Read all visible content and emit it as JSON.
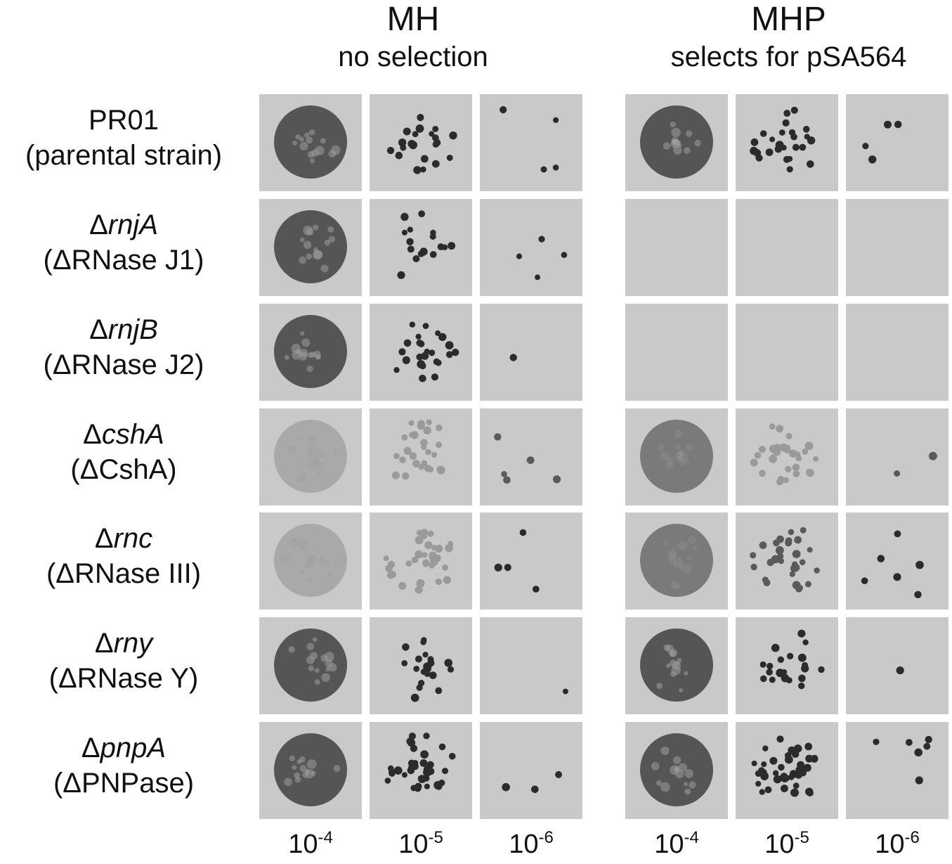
{
  "panels": [
    {
      "id": "mh",
      "title": "MH",
      "subtitle": "no selection"
    },
    {
      "id": "mhp",
      "title": "MHP",
      "subtitle": "selects for pSA564"
    }
  ],
  "strains": [
    {
      "strain": "PR01",
      "desc": "(parental strain)",
      "delta": false
    },
    {
      "strain": "rnjA",
      "desc": "(ΔRNase J1)",
      "delta": true
    },
    {
      "strain": "rnjB",
      "desc": "(ΔRNase J2)",
      "delta": true
    },
    {
      "strain": "cshA",
      "desc": "(ΔCshA)",
      "delta": true
    },
    {
      "strain": "rnc",
      "desc": "(ΔRNase III)",
      "delta": true
    },
    {
      "strain": "rny",
      "desc": "(ΔRNase Y)",
      "delta": true
    },
    {
      "strain": "pnpA",
      "desc": "(ΔPNPase)",
      "delta": true
    }
  ],
  "delta_symbol": "Δ",
  "dilutions": [
    {
      "base": "10",
      "exp": "-4"
    },
    {
      "base": "10",
      "exp": "-5"
    },
    {
      "base": "10",
      "exp": "-6"
    },
    {
      "base": "10",
      "exp": "-4"
    },
    {
      "base": "10",
      "exp": "-5"
    },
    {
      "base": "10",
      "exp": "-6"
    }
  ],
  "colors": {
    "plate_bg": "#c9c9c9",
    "growth_dark": "#555555",
    "growth_light": "#a9a9a9",
    "colony_dark": "#2b2b2b",
    "colony_light": "#9a9a9a"
  },
  "growth": [
    [
      "dark",
      "dark",
      "dark",
      "dark",
      "dark",
      "dark"
    ],
    [
      "dark",
      "dark",
      "dark",
      "none",
      "none",
      "none"
    ],
    [
      "dark",
      "dark",
      "dark",
      "none",
      "none",
      "none"
    ],
    [
      "light",
      "light",
      "medium",
      "medium",
      "light",
      "medium"
    ],
    [
      "light",
      "light",
      "dark",
      "medium",
      "medium",
      "dark"
    ],
    [
      "dark",
      "dark",
      "dark",
      "dark",
      "dark",
      "dark"
    ],
    [
      "dark",
      "dark",
      "dark",
      "dark",
      "dark",
      "dark"
    ]
  ]
}
